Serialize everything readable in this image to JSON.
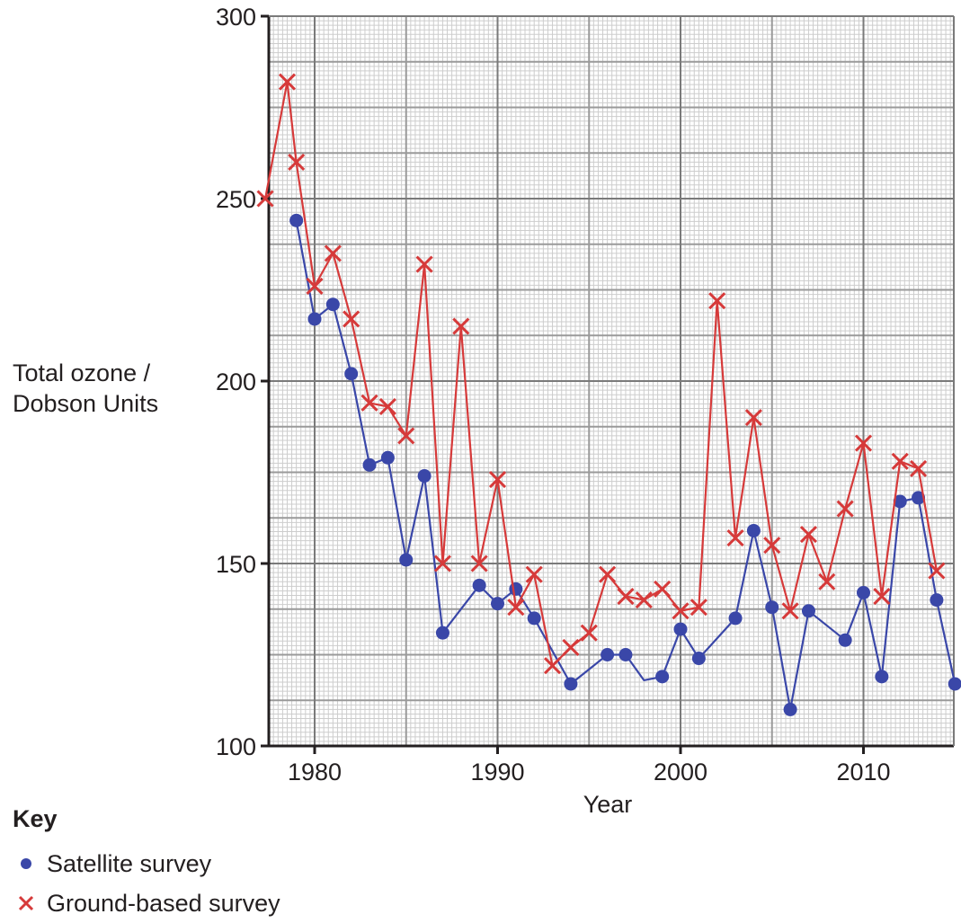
{
  "chart_data": {
    "type": "line",
    "ylabel_lines": [
      "Total ozone /",
      "Dobson Units"
    ],
    "xlabel": "Year",
    "xlim": [
      1977.3,
      2015.2
    ],
    "ylim": [
      100,
      300
    ],
    "x_ticks": [
      1980,
      1990,
      2000,
      2010
    ],
    "y_ticks": [
      100,
      150,
      200,
      250,
      300
    ],
    "grid": true,
    "legend_title": "Key",
    "series": [
      {
        "name": "Satellite survey",
        "marker": "circle",
        "color": "#3a47a8",
        "points": [
          [
            1979,
            244
          ],
          [
            1980,
            217
          ],
          [
            1981,
            221
          ],
          [
            1982,
            202
          ],
          [
            1983,
            177
          ],
          [
            1984,
            179
          ],
          [
            1985,
            151
          ],
          [
            1986,
            174
          ],
          [
            1987,
            131
          ],
          [
            1989,
            144
          ],
          [
            1990,
            139
          ],
          [
            1991,
            143
          ],
          [
            1992,
            135
          ],
          [
            1994,
            117
          ],
          [
            1996,
            125
          ],
          [
            1997,
            125
          ],
          [
            1998,
            118
          ],
          [
            1999,
            119
          ],
          [
            2000,
            132
          ],
          [
            2001,
            124
          ],
          [
            2003,
            135
          ],
          [
            2004,
            159
          ],
          [
            2005,
            138
          ],
          [
            2006,
            110
          ],
          [
            2007,
            137
          ],
          [
            2009,
            129
          ],
          [
            2010,
            142
          ],
          [
            2011,
            119
          ],
          [
            2012,
            167
          ],
          [
            2013,
            168
          ],
          [
            2014,
            140
          ],
          [
            2015,
            117
          ]
        ],
        "no_marker_x": [
          1998
        ]
      },
      {
        "name": "Ground-based survey",
        "marker": "cross",
        "color": "#d63a3a",
        "points": [
          [
            1977.3,
            250
          ],
          [
            1978.5,
            282
          ],
          [
            1979,
            260
          ],
          [
            1980,
            226
          ],
          [
            1981,
            235
          ],
          [
            1982,
            217
          ],
          [
            1983,
            194
          ],
          [
            1984,
            193
          ],
          [
            1985,
            185
          ],
          [
            1986,
            232
          ],
          [
            1987,
            150
          ],
          [
            1988,
            215
          ],
          [
            1989,
            150
          ],
          [
            1990,
            173
          ],
          [
            1991,
            138
          ],
          [
            1992,
            147
          ],
          [
            1993,
            122
          ],
          [
            1994,
            127
          ],
          [
            1995,
            131
          ],
          [
            1996,
            147
          ],
          [
            1997,
            141
          ],
          [
            1998,
            140
          ],
          [
            1999,
            143
          ],
          [
            2000,
            137
          ],
          [
            2001,
            138
          ],
          [
            2002,
            222
          ],
          [
            2003,
            157
          ],
          [
            2004,
            190
          ],
          [
            2005,
            155
          ],
          [
            2006,
            137
          ],
          [
            2007,
            158
          ],
          [
            2008,
            145
          ],
          [
            2009,
            165
          ],
          [
            2010,
            183
          ],
          [
            2011,
            141
          ],
          [
            2012,
            178
          ],
          [
            2013,
            176
          ],
          [
            2014,
            148
          ]
        ]
      }
    ]
  }
}
